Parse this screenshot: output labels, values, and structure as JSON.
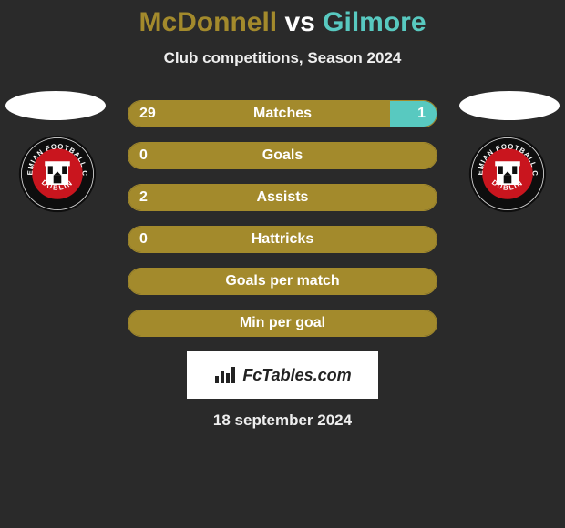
{
  "title_parts": {
    "left": "McDonnell",
    "vs": " vs ",
    "right": "Gilmore"
  },
  "title_colors": {
    "left": "#a38a2c",
    "vs": "#ffffff",
    "right": "#58c9c0"
  },
  "subtitle": "Club competitions, Season 2024",
  "bars": [
    {
      "label": "Matches",
      "left_value": "29",
      "right_value": "1",
      "left_pct": 85,
      "right_pct": 15,
      "left_color": "#a38a2c",
      "right_color": "#58c9c0",
      "border_color": "#a38a2c"
    },
    {
      "label": "Goals",
      "left_value": "0",
      "right_value": "",
      "left_pct": 100,
      "right_pct": 0,
      "left_color": "#a38a2c",
      "right_color": "#58c9c0",
      "border_color": "#a38a2c"
    },
    {
      "label": "Assists",
      "left_value": "2",
      "right_value": "",
      "left_pct": 100,
      "right_pct": 0,
      "left_color": "#a38a2c",
      "right_color": "#58c9c0",
      "border_color": "#a38a2c"
    },
    {
      "label": "Hattricks",
      "left_value": "0",
      "right_value": "",
      "left_pct": 100,
      "right_pct": 0,
      "left_color": "#a38a2c",
      "right_color": "#58c9c0",
      "border_color": "#a38a2c"
    },
    {
      "label": "Goals per match",
      "left_value": "",
      "right_value": "",
      "left_pct": 100,
      "right_pct": 0,
      "left_color": "#a38a2c",
      "right_color": "#58c9c0",
      "border_color": "#a38a2c"
    },
    {
      "label": "Min per goal",
      "left_value": "",
      "right_value": "",
      "left_pct": 100,
      "right_pct": 0,
      "left_color": "#a38a2c",
      "right_color": "#58c9c0",
      "border_color": "#a38a2c"
    }
  ],
  "watermark_text": "FcTables.com",
  "date_text": "18 september 2024",
  "badge": {
    "outer": "#0e0e0e",
    "ring": "#d8d8d8",
    "inner": "#c9151e",
    "text_top": "BOHEMIAN",
    "text_bottom": "DUBLIN",
    "text_side": "FOOTBALL CLUB"
  },
  "background_color": "#2a2a2a"
}
